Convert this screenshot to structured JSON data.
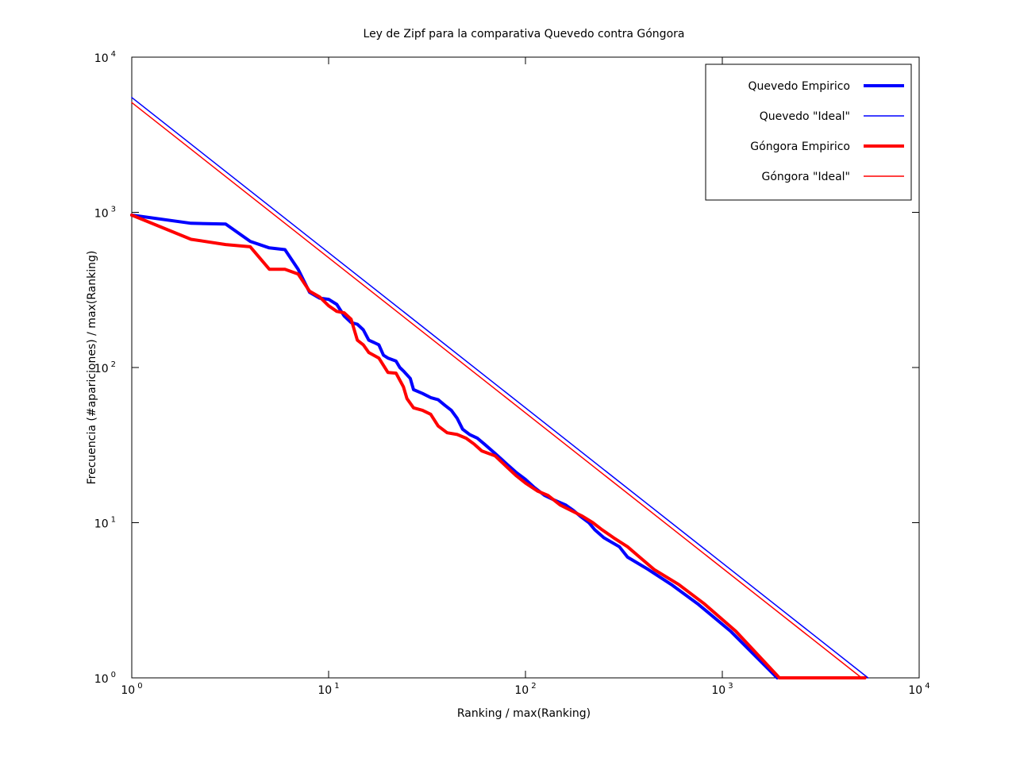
{
  "chart_data": {
    "type": "line",
    "title": "Ley de Zipf para la comparativa Quevedo contra Góngora",
    "xlabel": "Ranking / max(Ranking)",
    "ylabel": "Frecuencia (#apariciones) / max(Ranking)",
    "xscale": "log",
    "yscale": "log",
    "xlim": [
      1,
      10000
    ],
    "ylim": [
      1,
      10000
    ],
    "x_ticks": [
      {
        "value": 1,
        "base": "10",
        "exp": "0"
      },
      {
        "value": 10,
        "base": "10",
        "exp": "1"
      },
      {
        "value": 100,
        "base": "10",
        "exp": "2"
      },
      {
        "value": 1000,
        "base": "10",
        "exp": "3"
      },
      {
        "value": 10000,
        "base": "10",
        "exp": "4"
      }
    ],
    "y_ticks": [
      {
        "value": 1,
        "base": "10",
        "exp": "0"
      },
      {
        "value": 10,
        "base": "10",
        "exp": "1"
      },
      {
        "value": 100,
        "base": "10",
        "exp": "2"
      },
      {
        "value": 1000,
        "base": "10",
        "exp": "3"
      },
      {
        "value": 10000,
        "base": "10",
        "exp": "4"
      }
    ],
    "legend_position": "top-right",
    "series": [
      {
        "name": "Quevedo Empirico",
        "color": "#0000ff",
        "style": "thick",
        "points": [
          [
            1,
            960
          ],
          [
            2,
            850
          ],
          [
            3,
            840
          ],
          [
            4,
            650
          ],
          [
            5,
            590
          ],
          [
            6,
            575
          ],
          [
            7,
            430
          ],
          [
            8,
            305
          ],
          [
            9,
            280
          ],
          [
            10,
            275
          ],
          [
            11,
            255
          ],
          [
            12,
            215
          ],
          [
            13,
            195
          ],
          [
            14,
            190
          ],
          [
            15,
            175
          ],
          [
            16,
            150
          ],
          [
            17,
            145
          ],
          [
            18,
            140
          ],
          [
            19,
            120
          ],
          [
            20,
            115
          ],
          [
            22,
            110
          ],
          [
            23,
            100
          ],
          [
            24,
            95
          ],
          [
            26,
            85
          ],
          [
            27,
            72
          ],
          [
            30,
            68
          ],
          [
            33,
            64
          ],
          [
            36,
            62
          ],
          [
            39,
            57
          ],
          [
            42,
            53
          ],
          [
            45,
            47
          ],
          [
            48,
            40
          ],
          [
            52,
            37
          ],
          [
            57,
            35
          ],
          [
            62,
            32
          ],
          [
            70,
            28
          ],
          [
            80,
            24
          ],
          [
            90,
            21
          ],
          [
            100,
            19
          ],
          [
            110,
            17
          ],
          [
            125,
            15
          ],
          [
            140,
            14
          ],
          [
            160,
            13
          ],
          [
            175,
            12
          ],
          [
            190,
            11
          ],
          [
            210,
            10
          ],
          [
            225,
            9
          ],
          [
            250,
            8
          ],
          [
            300,
            7
          ],
          [
            330,
            6
          ],
          [
            420,
            5
          ],
          [
            550,
            4
          ],
          [
            750,
            3
          ],
          [
            1100,
            2
          ],
          [
            1900,
            1
          ]
        ]
      },
      {
        "name": "Quevedo \"Ideal\"",
        "color": "#0000ff",
        "style": "thin",
        "points": [
          [
            1,
            5500
          ],
          [
            5500,
            1
          ]
        ]
      },
      {
        "name": "Góngora Empirico",
        "color": "#ff0000",
        "style": "thick",
        "points": [
          [
            1,
            960
          ],
          [
            2,
            670
          ],
          [
            3,
            620
          ],
          [
            4,
            600
          ],
          [
            5,
            430
          ],
          [
            6,
            430
          ],
          [
            7,
            400
          ],
          [
            8,
            310
          ],
          [
            9,
            285
          ],
          [
            10,
            250
          ],
          [
            11,
            230
          ],
          [
            12,
            225
          ],
          [
            13,
            205
          ],
          [
            14,
            150
          ],
          [
            15,
            140
          ],
          [
            16,
            125
          ],
          [
            18,
            115
          ],
          [
            20,
            93
          ],
          [
            22,
            92
          ],
          [
            24,
            75
          ],
          [
            25,
            63
          ],
          [
            27,
            55
          ],
          [
            30,
            53
          ],
          [
            33,
            50
          ],
          [
            36,
            42
          ],
          [
            40,
            38
          ],
          [
            45,
            37
          ],
          [
            50,
            35
          ],
          [
            55,
            32
          ],
          [
            60,
            29
          ],
          [
            70,
            27
          ],
          [
            80,
            23
          ],
          [
            90,
            20
          ],
          [
            100,
            18
          ],
          [
            115,
            16
          ],
          [
            130,
            15
          ],
          [
            150,
            13
          ],
          [
            170,
            12
          ],
          [
            195,
            11
          ],
          [
            220,
            10
          ],
          [
            245,
            9
          ],
          [
            280,
            8
          ],
          [
            330,
            7
          ],
          [
            380,
            6
          ],
          [
            450,
            5
          ],
          [
            600,
            4
          ],
          [
            810,
            3
          ],
          [
            1170,
            2
          ],
          [
            1950,
            1
          ],
          [
            5300,
            1
          ]
        ]
      },
      {
        "name": "Góngora \"Ideal\"",
        "color": "#ff0000",
        "style": "thin",
        "points": [
          [
            1,
            5100
          ],
          [
            5100,
            1
          ]
        ]
      }
    ]
  }
}
